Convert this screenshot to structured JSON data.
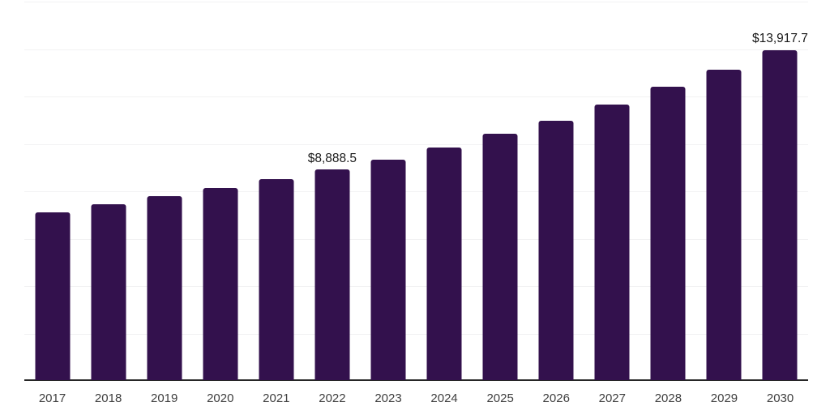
{
  "chart_data": {
    "type": "bar",
    "title": "",
    "xlabel": "",
    "ylabel": "",
    "categories": [
      "2017",
      "2018",
      "2019",
      "2020",
      "2021",
      "2022",
      "2023",
      "2024",
      "2025",
      "2026",
      "2027",
      "2028",
      "2029",
      "2030"
    ],
    "values": [
      7080,
      7420,
      7760,
      8100,
      8480,
      8888.5,
      9290,
      9800,
      10380,
      10930,
      11640,
      12360,
      13110,
      13917.7
    ],
    "data_labels": {
      "2022": "$8,888.5",
      "2030": "$13,917.7"
    },
    "ylim": [
      0,
      16000
    ],
    "grid_step": 2000,
    "grid": "horizontal",
    "legend": "none",
    "y_tick_labels_visible": false,
    "colors": {
      "bar": "#33114D",
      "gridline": "#F2F2F3",
      "axis_line": "#262626",
      "tick_label": "#404040",
      "data_label": "#1A1A1A",
      "background": "#FFFFFF"
    }
  }
}
